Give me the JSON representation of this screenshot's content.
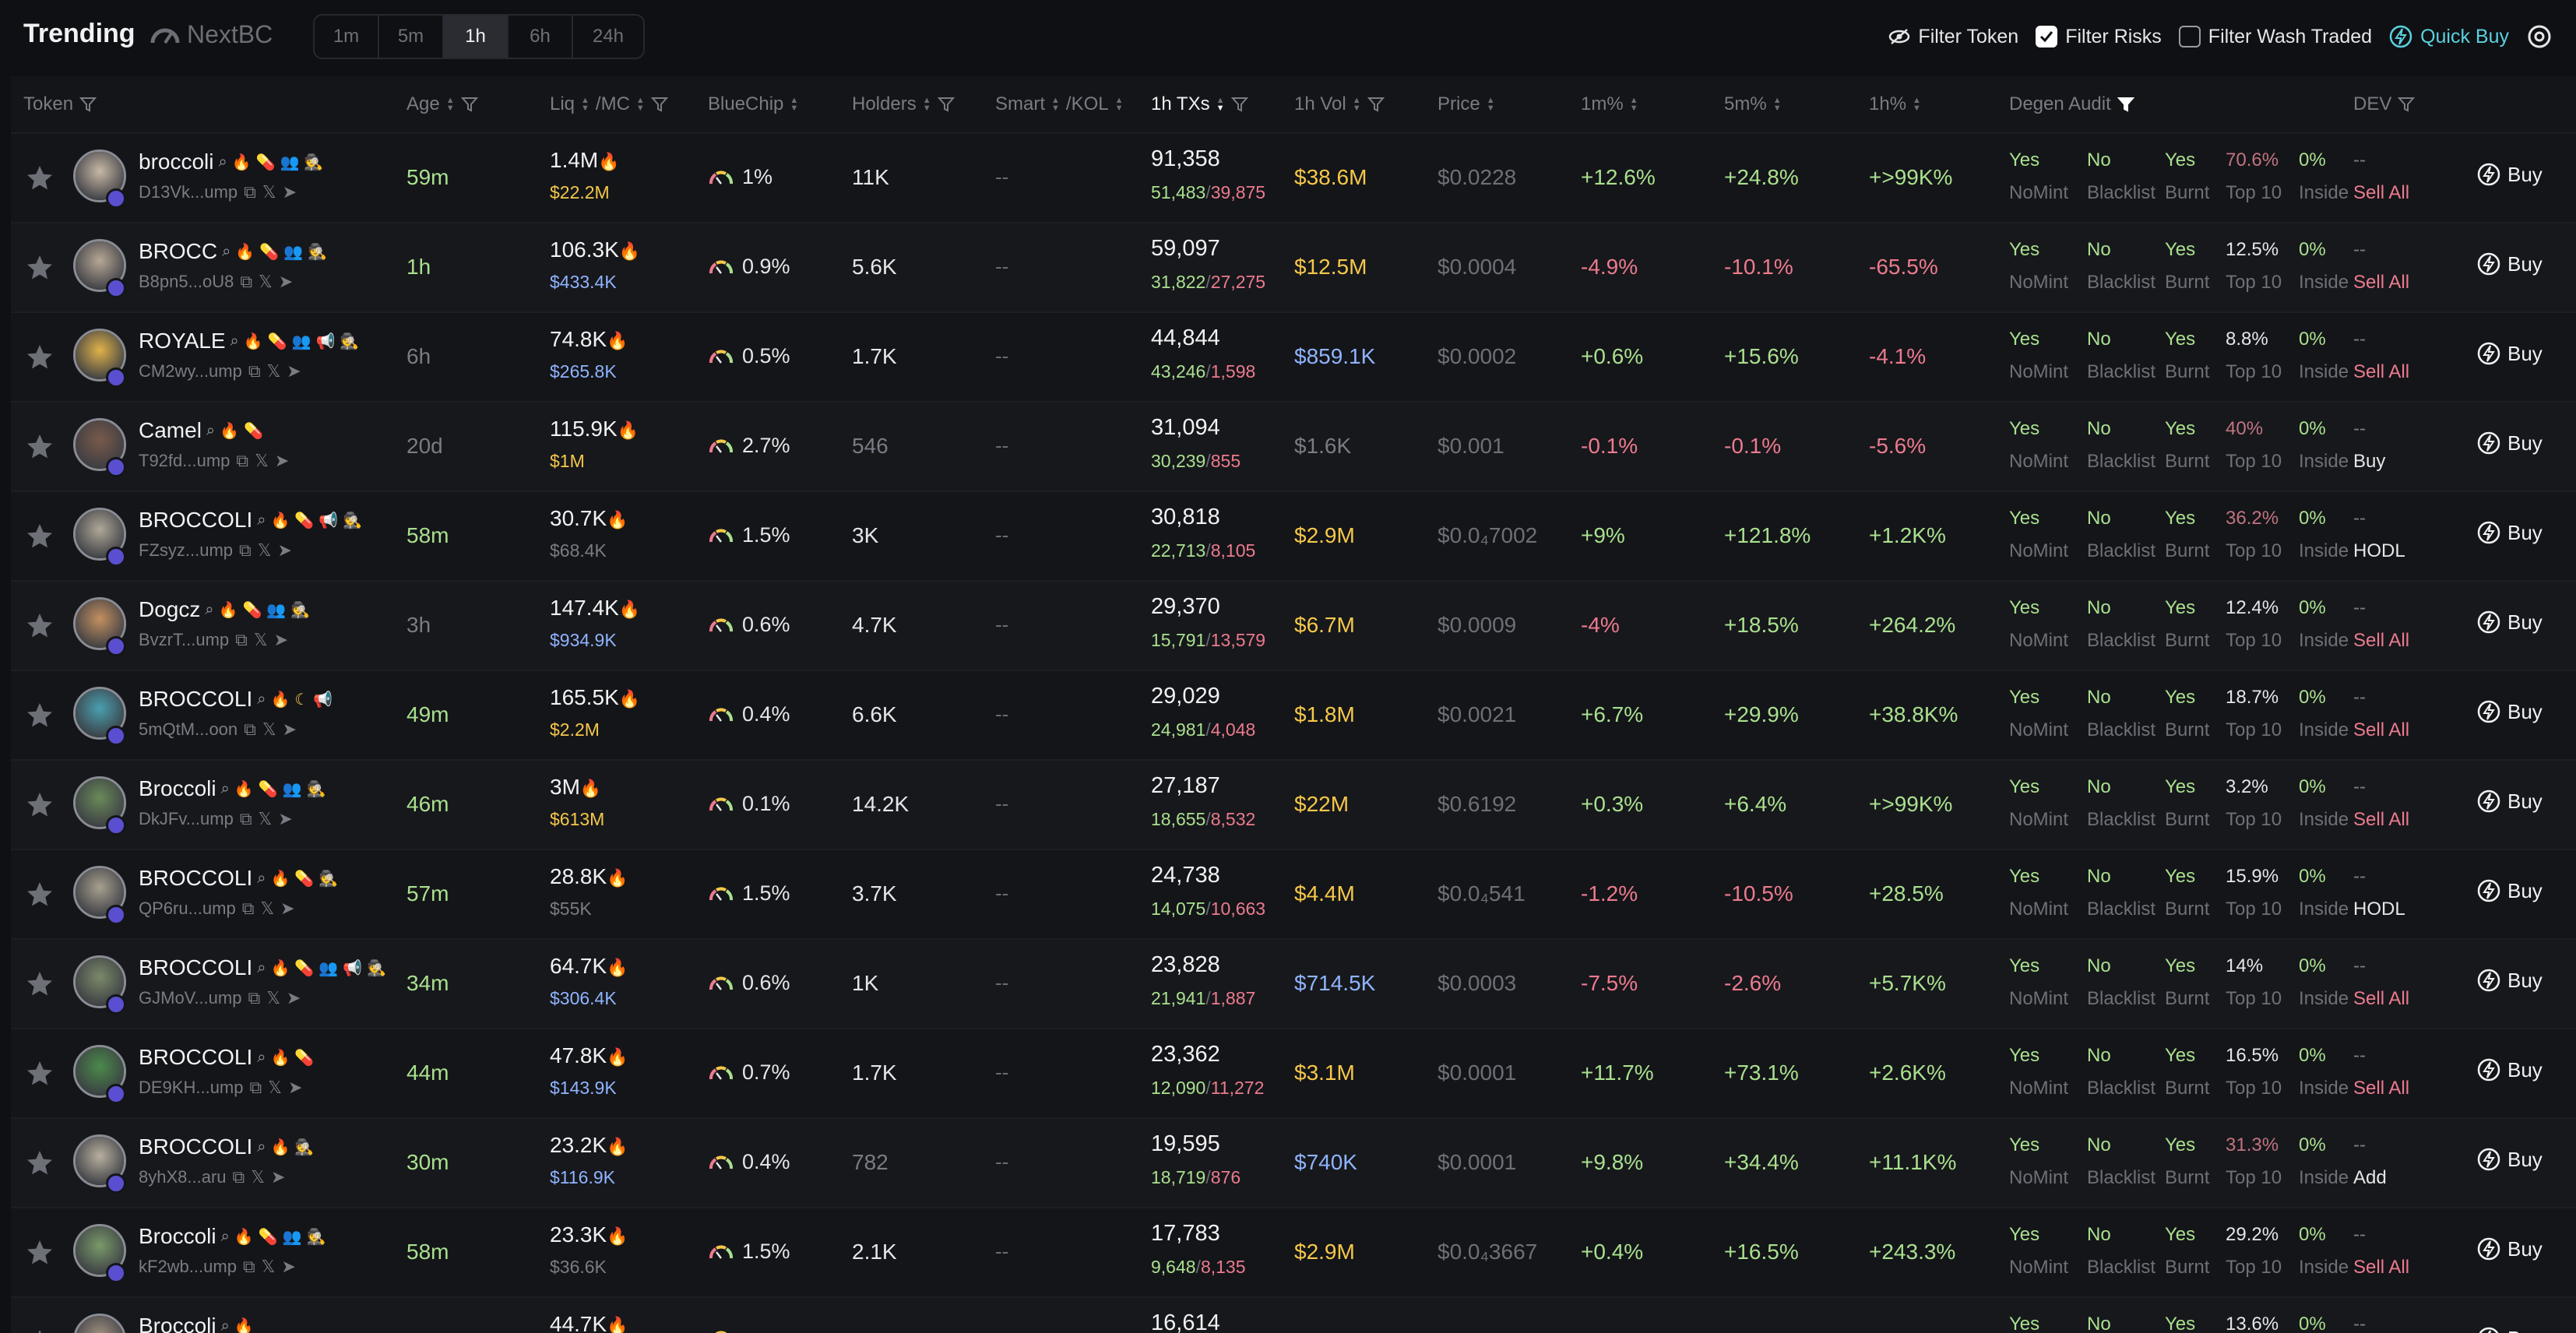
{
  "header": {
    "title": "Trending",
    "brand": "NextBC",
    "timeframes": [
      "1m",
      "5m",
      "1h",
      "6h",
      "24h"
    ],
    "active_timeframe": "1h",
    "filter_token": "Filter Token",
    "filter_risks": "Filter Risks",
    "filter_wash": "Filter Wash Traded",
    "quick_buy": "Quick Buy"
  },
  "columns": {
    "token": "Token",
    "age": "Age",
    "liq": "Liq",
    "mc": "/MC",
    "bluechip": "BlueChip",
    "holders": "Holders",
    "smart": "Smart",
    "kol": "/KOL",
    "txs": "1h TXs",
    "vol": "1h Vol",
    "price": "Price",
    "m1": "1m%",
    "m5": "5m%",
    "h1": "1h%",
    "audit": "Degen Audit",
    "dev": "DEV"
  },
  "audit_labels": {
    "mint_value": "Yes",
    "blacklist_value": "No",
    "burnt_value": "Yes",
    "insider_value": "0%",
    "mint_label": "NoMint",
    "blacklist_label": "Blacklist",
    "burnt_label": "Burnt",
    "top10_label": "Top 10",
    "insider_label": "Inside",
    "buy_label": "Buy"
  },
  "colors": {
    "buy": "#a9e08e",
    "sell": "#ec7b8e",
    "vol_high": "#f5c84a",
    "vol_mid": "#8fb4ff",
    "accent": "#5ad1e0"
  },
  "rows": [
    {
      "name": "broccoli",
      "addr": "D13Vk...ump",
      "icons": [
        "search-icon",
        "flame-icon",
        "pill-icon",
        "users-icon",
        "spy-icon"
      ],
      "age": "59m",
      "age_c": "grn",
      "liq": "1.4M",
      "mc": "$22.2M",
      "mc_c": "yel",
      "bluechip": "1%",
      "holders": "11K",
      "holders_c": "wht",
      "smart": "--",
      "txs": "91,358",
      "buys": "51,483",
      "sells": "39,875",
      "vol": "$38.6M",
      "vol_c": "yel",
      "price": "$0.0228",
      "m1": "+12.6%",
      "m5": "+24.8%",
      "h1": "+>99K%",
      "top10": "70.6%",
      "top10_c": "dimred",
      "dev": "--",
      "dev_action": "Sell All",
      "dev_c": "red"
    },
    {
      "name": "BROCC",
      "addr": "B8pn5...oU8",
      "icons": [
        "search-icon",
        "flame-icon",
        "pill-icon",
        "users-icon",
        "spy-icon"
      ],
      "age": "1h",
      "age_c": "grn",
      "liq": "106.3K",
      "mc": "$433.4K",
      "mc_c": "blu",
      "bluechip": "0.9%",
      "holders": "5.6K",
      "holders_c": "wht",
      "smart": "--",
      "txs": "59,097",
      "buys": "31,822",
      "sells": "27,275",
      "vol": "$12.5M",
      "vol_c": "yel",
      "price": "$0.0004",
      "m1": "-4.9%",
      "m5": "-10.1%",
      "h1": "-65.5%",
      "top10": "12.5%",
      "top10_c": "wht",
      "dev": "--",
      "dev_action": "Sell All",
      "dev_c": "red"
    },
    {
      "name": "ROYALE",
      "addr": "CM2wy...ump",
      "icons": [
        "search-icon",
        "flame-icon",
        "pill-icon",
        "users-icon",
        "megaphone-icon",
        "spy-icon"
      ],
      "age": "6h",
      "age_c": "gry",
      "liq": "74.8K",
      "mc": "$265.8K",
      "mc_c": "blu",
      "bluechip": "0.5%",
      "holders": "1.7K",
      "holders_c": "wht",
      "smart": "--",
      "txs": "44,844",
      "buys": "43,246",
      "sells": "1,598",
      "vol": "$859.1K",
      "vol_c": "blu",
      "price": "$0.0002",
      "m1": "+0.6%",
      "m5": "+15.6%",
      "h1": "-4.1%",
      "top10": "8.8%",
      "top10_c": "wht",
      "dev": "--",
      "dev_action": "Sell All",
      "dev_c": "red"
    },
    {
      "name": "Camel",
      "addr": "T92fd...ump",
      "icons": [
        "search-icon",
        "flame-icon",
        "pill-icon"
      ],
      "age": "20d",
      "age_c": "gry",
      "liq": "115.9K",
      "mc": "$1M",
      "mc_c": "yel",
      "bluechip": "2.7%",
      "holders": "546",
      "holders_c": "gry",
      "smart": "--",
      "txs": "31,094",
      "buys": "30,239",
      "sells": "855",
      "vol": "$1.6K",
      "vol_c": "gry",
      "price": "$0.001",
      "m1": "-0.1%",
      "m5": "-0.1%",
      "h1": "-5.6%",
      "top10": "40%",
      "top10_c": "dimred",
      "dev": "--",
      "dev_action": "Buy",
      "dev_c": "wht"
    },
    {
      "name": "BROCCOLI",
      "addr": "FZsyz...ump",
      "icons": [
        "search-icon",
        "flame-icon",
        "pill-icon",
        "megaphone-icon",
        "spy-icon"
      ],
      "age": "58m",
      "age_c": "grn",
      "liq": "30.7K",
      "mc": "$68.4K",
      "mc_c": "gry",
      "bluechip": "1.5%",
      "holders": "3K",
      "holders_c": "wht",
      "smart": "--",
      "txs": "30,818",
      "buys": "22,713",
      "sells": "8,105",
      "vol": "$2.9M",
      "vol_c": "yel",
      "price": "$0.0₄7002",
      "m1": "+9%",
      "m5": "+121.8%",
      "h1": "+1.2K%",
      "top10": "36.2%",
      "top10_c": "dimred",
      "dev": "--",
      "dev_action": "HODL",
      "dev_c": "wht"
    },
    {
      "name": "Dogcz",
      "addr": "BvzrT...ump",
      "icons": [
        "search-icon",
        "flame-icon",
        "pill-icon",
        "users-icon",
        "spy-icon"
      ],
      "age": "3h",
      "age_c": "gry",
      "liq": "147.4K",
      "mc": "$934.9K",
      "mc_c": "blu",
      "bluechip": "0.6%",
      "holders": "4.7K",
      "holders_c": "wht",
      "smart": "--",
      "txs": "29,370",
      "buys": "15,791",
      "sells": "13,579",
      "vol": "$6.7M",
      "vol_c": "yel",
      "price": "$0.0009",
      "m1": "-4%",
      "m5": "+18.5%",
      "h1": "+264.2%",
      "top10": "12.4%",
      "top10_c": "wht",
      "dev": "--",
      "dev_action": "Sell All",
      "dev_c": "red"
    },
    {
      "name": "BROCCOLI",
      "addr": "5mQtM...oon",
      "icons": [
        "search-icon",
        "flame-icon",
        "moon-icon",
        "megaphone-icon"
      ],
      "age": "49m",
      "age_c": "grn",
      "liq": "165.5K",
      "mc": "$2.2M",
      "mc_c": "yel",
      "bluechip": "0.4%",
      "holders": "6.6K",
      "holders_c": "wht",
      "smart": "--",
      "txs": "29,029",
      "buys": "24,981",
      "sells": "4,048",
      "vol": "$1.8M",
      "vol_c": "yel",
      "price": "$0.0021",
      "m1": "+6.7%",
      "m5": "+29.9%",
      "h1": "+38.8K%",
      "top10": "18.7%",
      "top10_c": "wht",
      "dev": "--",
      "dev_action": "Sell All",
      "dev_c": "red"
    },
    {
      "name": "Broccoli",
      "addr": "DkJFv...ump",
      "icons": [
        "search-icon",
        "flame-icon",
        "pill-icon",
        "users-icon",
        "spy-icon"
      ],
      "age": "46m",
      "age_c": "grn",
      "liq": "3M",
      "mc": "$613M",
      "mc_c": "yel",
      "bluechip": "0.1%",
      "holders": "14.2K",
      "holders_c": "wht",
      "smart": "--",
      "txs": "27,187",
      "buys": "18,655",
      "sells": "8,532",
      "vol": "$22M",
      "vol_c": "yel",
      "price": "$0.6192",
      "m1": "+0.3%",
      "m5": "+6.4%",
      "h1": "+>99K%",
      "top10": "3.2%",
      "top10_c": "wht",
      "dev": "--",
      "dev_action": "Sell All",
      "dev_c": "red"
    },
    {
      "name": "BROCCOLI",
      "addr": "QP6ru...ump",
      "icons": [
        "search-icon",
        "flame-icon",
        "pill-icon",
        "spy-icon"
      ],
      "age": "57m",
      "age_c": "grn",
      "liq": "28.8K",
      "mc": "$55K",
      "mc_c": "gry",
      "bluechip": "1.5%",
      "holders": "3.7K",
      "holders_c": "wht",
      "smart": "--",
      "txs": "24,738",
      "buys": "14,075",
      "sells": "10,663",
      "vol": "$4.4M",
      "vol_c": "yel",
      "price": "$0.0₄541",
      "m1": "-1.2%",
      "m5": "-10.5%",
      "h1": "+28.5%",
      "top10": "15.9%",
      "top10_c": "wht",
      "dev": "--",
      "dev_action": "HODL",
      "dev_c": "wht"
    },
    {
      "name": "BROCCOLI",
      "addr": "GJMoV...ump",
      "icons": [
        "search-icon",
        "flame-icon",
        "pill-icon",
        "users-icon",
        "megaphone-icon",
        "spy-icon"
      ],
      "age": "34m",
      "age_c": "grn",
      "liq": "64.7K",
      "mc": "$306.4K",
      "mc_c": "blu",
      "bluechip": "0.6%",
      "holders": "1K",
      "holders_c": "wht",
      "smart": "--",
      "txs": "23,828",
      "buys": "21,941",
      "sells": "1,887",
      "vol": "$714.5K",
      "vol_c": "blu",
      "price": "$0.0003",
      "m1": "-7.5%",
      "m5": "-2.6%",
      "h1": "+5.7K%",
      "top10": "14%",
      "top10_c": "wht",
      "dev": "--",
      "dev_action": "Sell All",
      "dev_c": "red"
    },
    {
      "name": "BROCCOLI",
      "addr": "DE9KH...ump",
      "icons": [
        "search-icon",
        "flame-icon",
        "pill-icon"
      ],
      "age": "44m",
      "age_c": "grn",
      "liq": "47.8K",
      "mc": "$143.9K",
      "mc_c": "blu",
      "bluechip": "0.7%",
      "holders": "1.7K",
      "holders_c": "wht",
      "smart": "--",
      "txs": "23,362",
      "buys": "12,090",
      "sells": "11,272",
      "vol": "$3.1M",
      "vol_c": "yel",
      "price": "$0.0001",
      "m1": "+11.7%",
      "m5": "+73.1%",
      "h1": "+2.6K%",
      "top10": "16.5%",
      "top10_c": "wht",
      "dev": "--",
      "dev_action": "Sell All",
      "dev_c": "red"
    },
    {
      "name": "BROCCOLI",
      "addr": "8yhX8...aru",
      "icons": [
        "search-icon",
        "flame-icon",
        "spy-icon"
      ],
      "age": "30m",
      "age_c": "grn",
      "liq": "23.2K",
      "mc": "$116.9K",
      "mc_c": "blu",
      "bluechip": "0.4%",
      "holders": "782",
      "holders_c": "gry",
      "smart": "--",
      "txs": "19,595",
      "buys": "18,719",
      "sells": "876",
      "vol": "$740K",
      "vol_c": "blu",
      "price": "$0.0001",
      "m1": "+9.8%",
      "m5": "+34.4%",
      "h1": "+11.1K%",
      "top10": "31.3%",
      "top10_c": "dimred",
      "dev": "--",
      "dev_action": "Add",
      "dev_c": "wht"
    },
    {
      "name": "Broccoli",
      "addr": "kF2wb...ump",
      "icons": [
        "search-icon",
        "flame-icon",
        "pill-icon",
        "users-icon",
        "spy-icon"
      ],
      "age": "58m",
      "age_c": "grn",
      "liq": "23.3K",
      "mc": "$36.6K",
      "mc_c": "gry",
      "bluechip": "1.5%",
      "holders": "2.1K",
      "holders_c": "wht",
      "smart": "--",
      "txs": "17,783",
      "buys": "9,648",
      "sells": "8,135",
      "vol": "$2.9M",
      "vol_c": "yel",
      "price": "$0.0₄3667",
      "m1": "+0.4%",
      "m5": "+16.5%",
      "h1": "+243.3%",
      "top10": "29.2%",
      "top10_c": "wht",
      "dev": "--",
      "dev_action": "Sell All",
      "dev_c": "red"
    },
    {
      "name": "Broccoli",
      "addr": "",
      "icons": [
        "search-icon",
        "flame-icon"
      ],
      "age": "",
      "age_c": "grn",
      "liq": "44.7K",
      "mc": "",
      "mc_c": "gry",
      "bluechip": "",
      "holders": "",
      "holders_c": "wht",
      "smart": "",
      "txs": "16,614",
      "buys": "",
      "sells": "",
      "vol": "",
      "vol_c": "yel",
      "price": "",
      "m1": "",
      "m5": "",
      "h1": "",
      "top10": "13.6%",
      "top10_c": "wht",
      "dev": "--",
      "dev_action": "",
      "dev_c": "red"
    }
  ]
}
